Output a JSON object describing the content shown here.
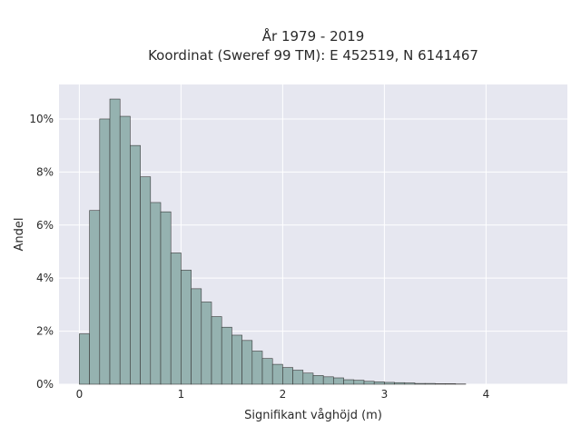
{
  "chart_data": {
    "type": "bar",
    "title": "År 1979 - 2019",
    "subtitle": "Koordinat (Sweref 99 TM): E 452519, N 6141467",
    "xlabel": "Signifikant våghöjd (m)",
    "ylabel": "Andel",
    "xlim": [
      -0.2,
      4.8
    ],
    "ylim": [
      0,
      0.113
    ],
    "xticks": [
      0,
      1,
      2,
      3,
      4
    ],
    "xtick_labels": [
      "0",
      "1",
      "2",
      "3",
      "4"
    ],
    "yticks": [
      0,
      0.02,
      0.04,
      0.06,
      0.08,
      0.1
    ],
    "ytick_labels": [
      "0%",
      "2%",
      "4%",
      "6%",
      "8%",
      "10%"
    ],
    "grid": true,
    "bar_color": "#95b2b0",
    "edge_color": "#3a3a3a",
    "background_color": "#e6e7f0",
    "bin_width": 0.1,
    "bin_start": [
      0.0,
      0.1,
      0.2,
      0.3,
      0.4,
      0.5,
      0.6,
      0.7,
      0.8,
      0.9,
      1.0,
      1.1,
      1.2,
      1.3,
      1.4,
      1.5,
      1.6,
      1.7,
      1.8,
      1.9,
      2.0,
      2.1,
      2.2,
      2.3,
      2.4,
      2.5,
      2.6,
      2.7,
      2.8,
      2.9,
      3.0,
      3.1,
      3.2,
      3.3,
      3.4,
      3.5,
      3.6,
      3.7
    ],
    "values": [
      0.019,
      0.0655,
      0.1,
      0.1075,
      0.101,
      0.09,
      0.0782,
      0.0685,
      0.065,
      0.0495,
      0.043,
      0.036,
      0.031,
      0.0255,
      0.0215,
      0.0185,
      0.0165,
      0.0125,
      0.0097,
      0.0075,
      0.0063,
      0.0053,
      0.0042,
      0.0033,
      0.0028,
      0.0024,
      0.0017,
      0.0015,
      0.0011,
      0.0009,
      0.0007,
      0.0006,
      0.0005,
      0.0003,
      0.0003,
      0.0002,
      0.0002,
      0.0001
    ]
  }
}
